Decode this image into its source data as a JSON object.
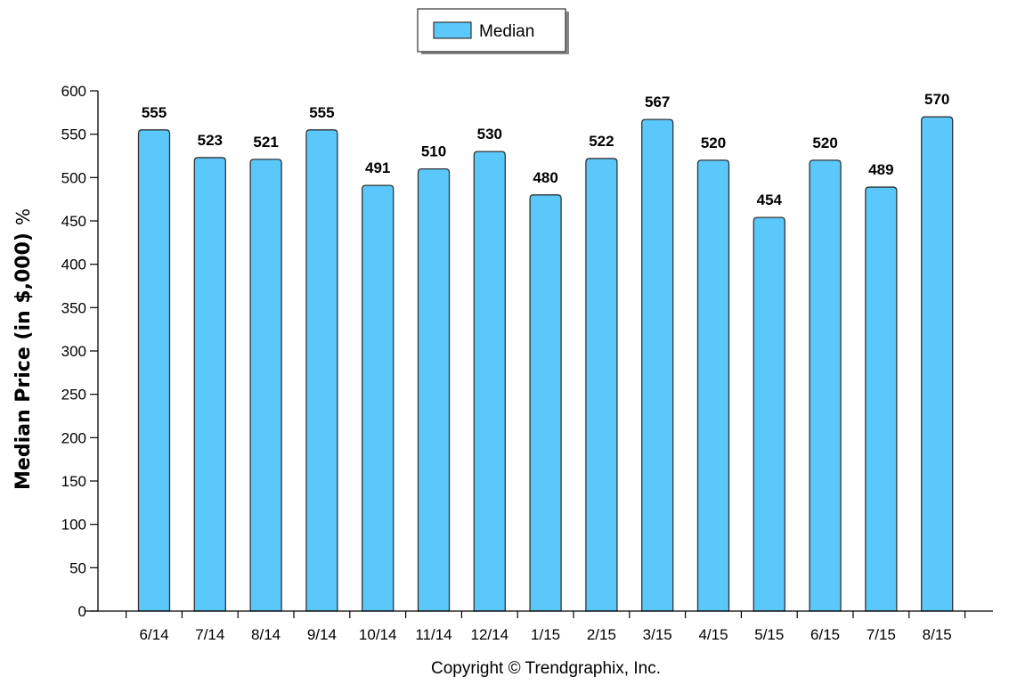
{
  "chart_data": {
    "type": "bar",
    "categories": [
      "6/14",
      "7/14",
      "8/14",
      "9/14",
      "10/14",
      "11/14",
      "12/14",
      "1/15",
      "2/15",
      "3/15",
      "4/15",
      "5/15",
      "6/15",
      "7/15",
      "8/15"
    ],
    "series": [
      {
        "name": "Median",
        "values": [
          555,
          523,
          521,
          555,
          491,
          510,
          530,
          480,
          522,
          567,
          520,
          454,
          520,
          489,
          570
        ]
      }
    ],
    "ylabel": "Median Price (in $,000)",
    "ylabel_unit": "%",
    "ylim": [
      0,
      600
    ],
    "yticks": [
      0,
      50,
      100,
      150,
      200,
      250,
      300,
      350,
      400,
      450,
      500,
      550,
      600
    ],
    "legend_position": "top-center",
    "grid": false,
    "bar_color": "#5BC8FB",
    "copyright": "Copyright © Trendgraphix, Inc."
  }
}
